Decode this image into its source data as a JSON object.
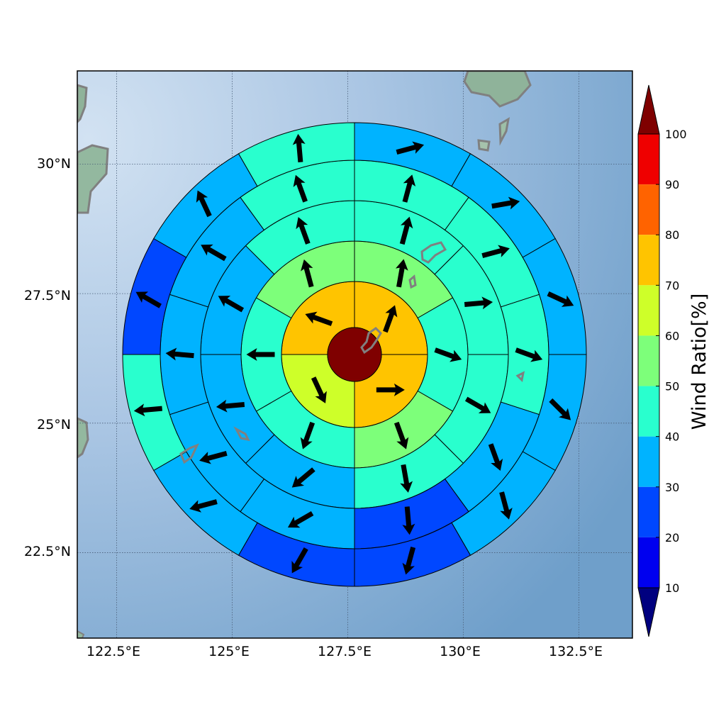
{
  "map": {
    "lon_ticks": [
      122.5,
      125,
      127.5,
      130,
      132.5
    ],
    "lat_ticks": [
      22.5,
      25,
      27.5,
      30
    ],
    "lon_range": [
      121.65,
      133.66
    ],
    "lat_range": [
      20.85,
      31.8
    ],
    "grid": true
  },
  "labels": {
    "lon": [
      "122.5°E",
      "125°E",
      "127.5°E",
      "130°E",
      "132.5°E"
    ],
    "lat": [
      "22.5°N",
      "25°N",
      "27.5°N",
      "30°N"
    ]
  },
  "chart_data": {
    "type": "heatmap",
    "description_units": "percent",
    "colorbar": {
      "label": "Wind Ratio[%]",
      "ticks": [
        "10",
        "20",
        "30",
        "40",
        "50",
        "60",
        "70",
        "80",
        "90",
        "100"
      ],
      "extend": "both",
      "colors": [
        "#00007f",
        "#0000ef",
        "#0047ff",
        "#00b3ff",
        "#29ffce",
        "#7dff7a",
        "#ceff29",
        "#ffc400",
        "#ff6300",
        "#ef0000",
        "#7f0000"
      ]
    },
    "center_value": 100,
    "rings": [
      {
        "sectors": 4,
        "values": [
          75,
          75,
          65,
          75
        ],
        "wind_dir": [
          0,
          100,
          180,
          200
        ],
        "arrow_dir": [
          20,
          90,
          155,
          290
        ]
      },
      {
        "sectors": 6,
        "values": [
          55,
          45,
          55,
          45,
          45,
          55
        ],
        "wind_dir": [
          5,
          80,
          150,
          210,
          270,
          330
        ],
        "arrow_dir": [
          10,
          110,
          160,
          200,
          270,
          345
        ]
      },
      {
        "sectors": 8,
        "values": [
          45,
          45,
          45,
          45,
          35,
          35,
          35,
          45
        ],
        "wind_dir": [
          10,
          60,
          110,
          160,
          200,
          250,
          300,
          350
        ],
        "arrow_dir": [
          15,
          85,
          120,
          170,
          230,
          265,
          300,
          340
        ]
      },
      {
        "sectors": 10,
        "values": [
          45,
          45,
          45,
          35,
          25,
          35,
          35,
          35,
          35,
          45
        ],
        "wind_dir": [
          10,
          50,
          90,
          130,
          160,
          200,
          230,
          270,
          300,
          340
        ],
        "arrow_dir": [
          15,
          75,
          110,
          160,
          175,
          240,
          255,
          275,
          300,
          340
        ]
      },
      {
        "sectors": 12,
        "values": [
          35,
          35,
          35,
          35,
          35,
          25,
          25,
          35,
          45,
          25,
          35,
          45
        ],
        "wind_dir": [
          15,
          45,
          75,
          105,
          135,
          165,
          195,
          225,
          255,
          285,
          315,
          345
        ],
        "arrow_dir": [
          75,
          80,
          115,
          135,
          165,
          195,
          210,
          255,
          265,
          300,
          335,
          355
        ]
      }
    ]
  }
}
